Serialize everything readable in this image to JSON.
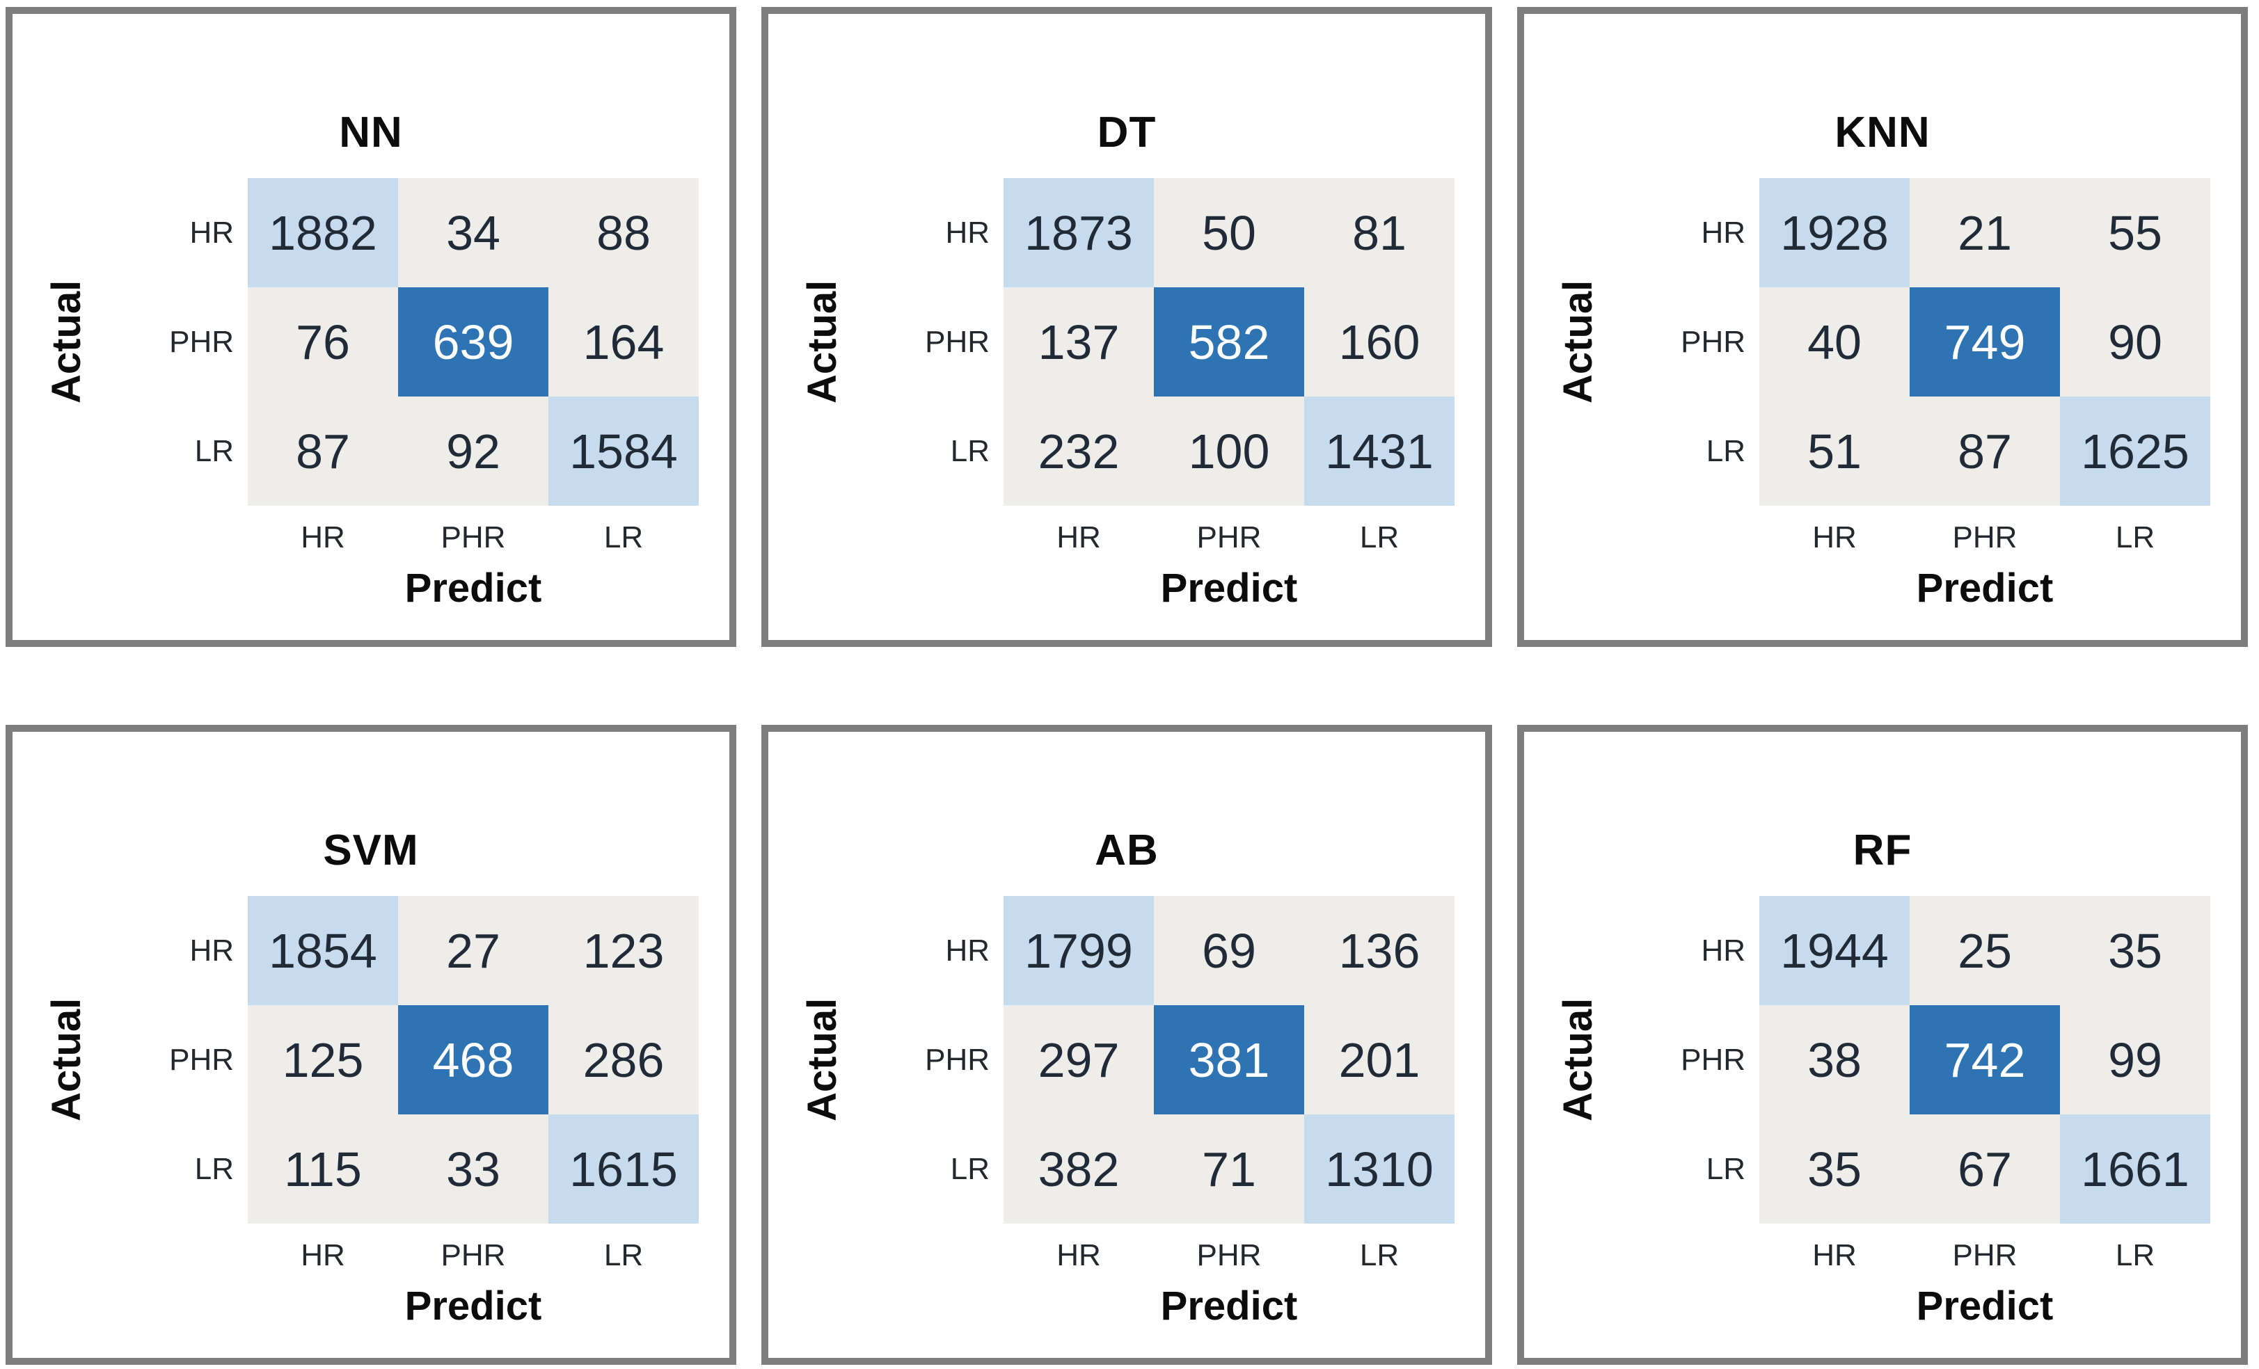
{
  "figure": {
    "rows": 2,
    "cols": 3,
    "panel_order": [
      "NN",
      "DT",
      "KNN",
      "SVM",
      "AB",
      "RF"
    ]
  },
  "colors": {
    "panel_border": "#7e7e7e",
    "cell_offdiag": "#eeede9",
    "cell_diag_light": "#c7dbee",
    "cell_diag_dark": "#2e74b5",
    "number_dark": "#212b38",
    "number_light": "#fdfeff"
  },
  "chart_data": [
    {
      "type": "heatmap",
      "title": "NN",
      "xlabel": "Predict",
      "ylabel": "Actual",
      "x_categories": [
        "HR",
        "PHR",
        "LR"
      ],
      "y_categories": [
        "HR",
        "PHR",
        "LR"
      ],
      "values": [
        [
          1882,
          34,
          88
        ],
        [
          76,
          639,
          164
        ],
        [
          87,
          92,
          1584
        ]
      ]
    },
    {
      "type": "heatmap",
      "title": "DT",
      "xlabel": "Predict",
      "ylabel": "Actual",
      "x_categories": [
        "HR",
        "PHR",
        "LR"
      ],
      "y_categories": [
        "HR",
        "PHR",
        "LR"
      ],
      "values": [
        [
          1873,
          50,
          81
        ],
        [
          137,
          582,
          160
        ],
        [
          232,
          100,
          1431
        ]
      ]
    },
    {
      "type": "heatmap",
      "title": "KNN",
      "xlabel": "Predict",
      "ylabel": "Actual",
      "x_categories": [
        "HR",
        "PHR",
        "LR"
      ],
      "y_categories": [
        "HR",
        "PHR",
        "LR"
      ],
      "values": [
        [
          1928,
          21,
          55
        ],
        [
          40,
          749,
          90
        ],
        [
          51,
          87,
          1625
        ]
      ]
    },
    {
      "type": "heatmap",
      "title": "SVM",
      "xlabel": "Predict",
      "ylabel": "Actual",
      "x_categories": [
        "HR",
        "PHR",
        "LR"
      ],
      "y_categories": [
        "HR",
        "PHR",
        "LR"
      ],
      "values": [
        [
          1854,
          27,
          123
        ],
        [
          125,
          468,
          286
        ],
        [
          115,
          33,
          1615
        ]
      ]
    },
    {
      "type": "heatmap",
      "title": "AB",
      "xlabel": "Predict",
      "ylabel": "Actual",
      "x_categories": [
        "HR",
        "PHR",
        "LR"
      ],
      "y_categories": [
        "HR",
        "PHR",
        "LR"
      ],
      "values": [
        [
          1799,
          69,
          136
        ],
        [
          297,
          381,
          201
        ],
        [
          382,
          71,
          1310
        ]
      ]
    },
    {
      "type": "heatmap",
      "title": "RF",
      "xlabel": "Predict",
      "ylabel": "Actual",
      "x_categories": [
        "HR",
        "PHR",
        "LR"
      ],
      "y_categories": [
        "HR",
        "PHR",
        "LR"
      ],
      "values": [
        [
          1944,
          25,
          35
        ],
        [
          38,
          742,
          99
        ],
        [
          35,
          67,
          1661
        ]
      ]
    }
  ]
}
